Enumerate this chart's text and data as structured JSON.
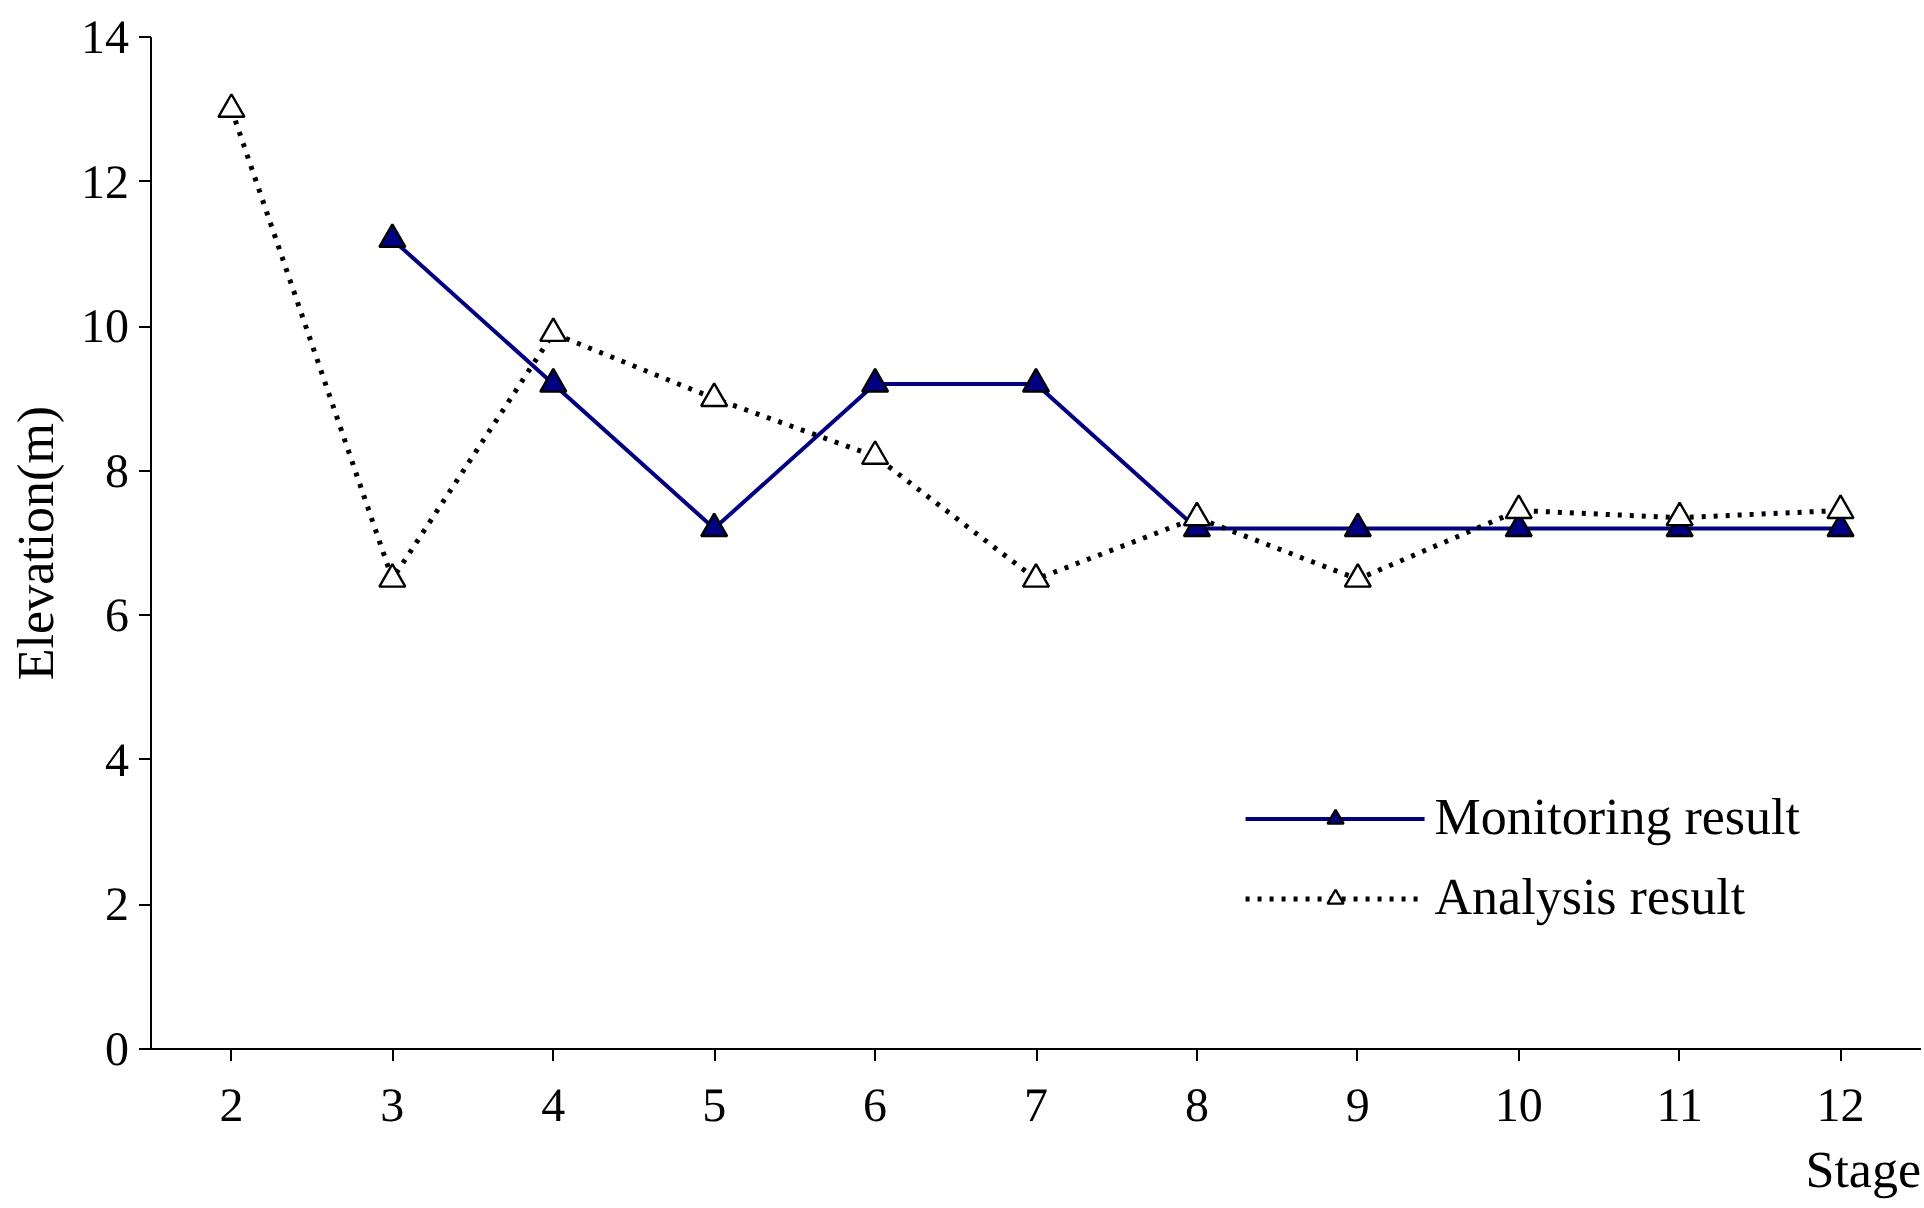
{
  "chart_data": {
    "type": "line",
    "xlabel": "Stage",
    "ylabel": "Elevation(m)",
    "categories": [
      "2",
      "3",
      "4",
      "5",
      "6",
      "7",
      "8",
      "9",
      "10",
      "11",
      "12"
    ],
    "series": [
      {
        "name": "Monitoring result",
        "color": "#000080",
        "values": [
          null,
          11.2,
          9.2,
          7.2,
          9.2,
          9.2,
          7.2,
          7.2,
          7.2,
          7.2,
          7.2
        ],
        "line_style": "solid",
        "marker": "triangle"
      },
      {
        "name": "Analysis result",
        "color": "#000000",
        "values": [
          13.0,
          6.5,
          9.9,
          9.0,
          8.2,
          6.5,
          7.35,
          6.5,
          7.45,
          7.35,
          7.45
        ],
        "line_style": "dotted",
        "marker": "triangle"
      }
    ],
    "ylim": [
      0,
      14
    ],
    "yticks": [
      0,
      2,
      4,
      6,
      8,
      10,
      12,
      14
    ],
    "grid": false,
    "legend": "bottom right"
  }
}
